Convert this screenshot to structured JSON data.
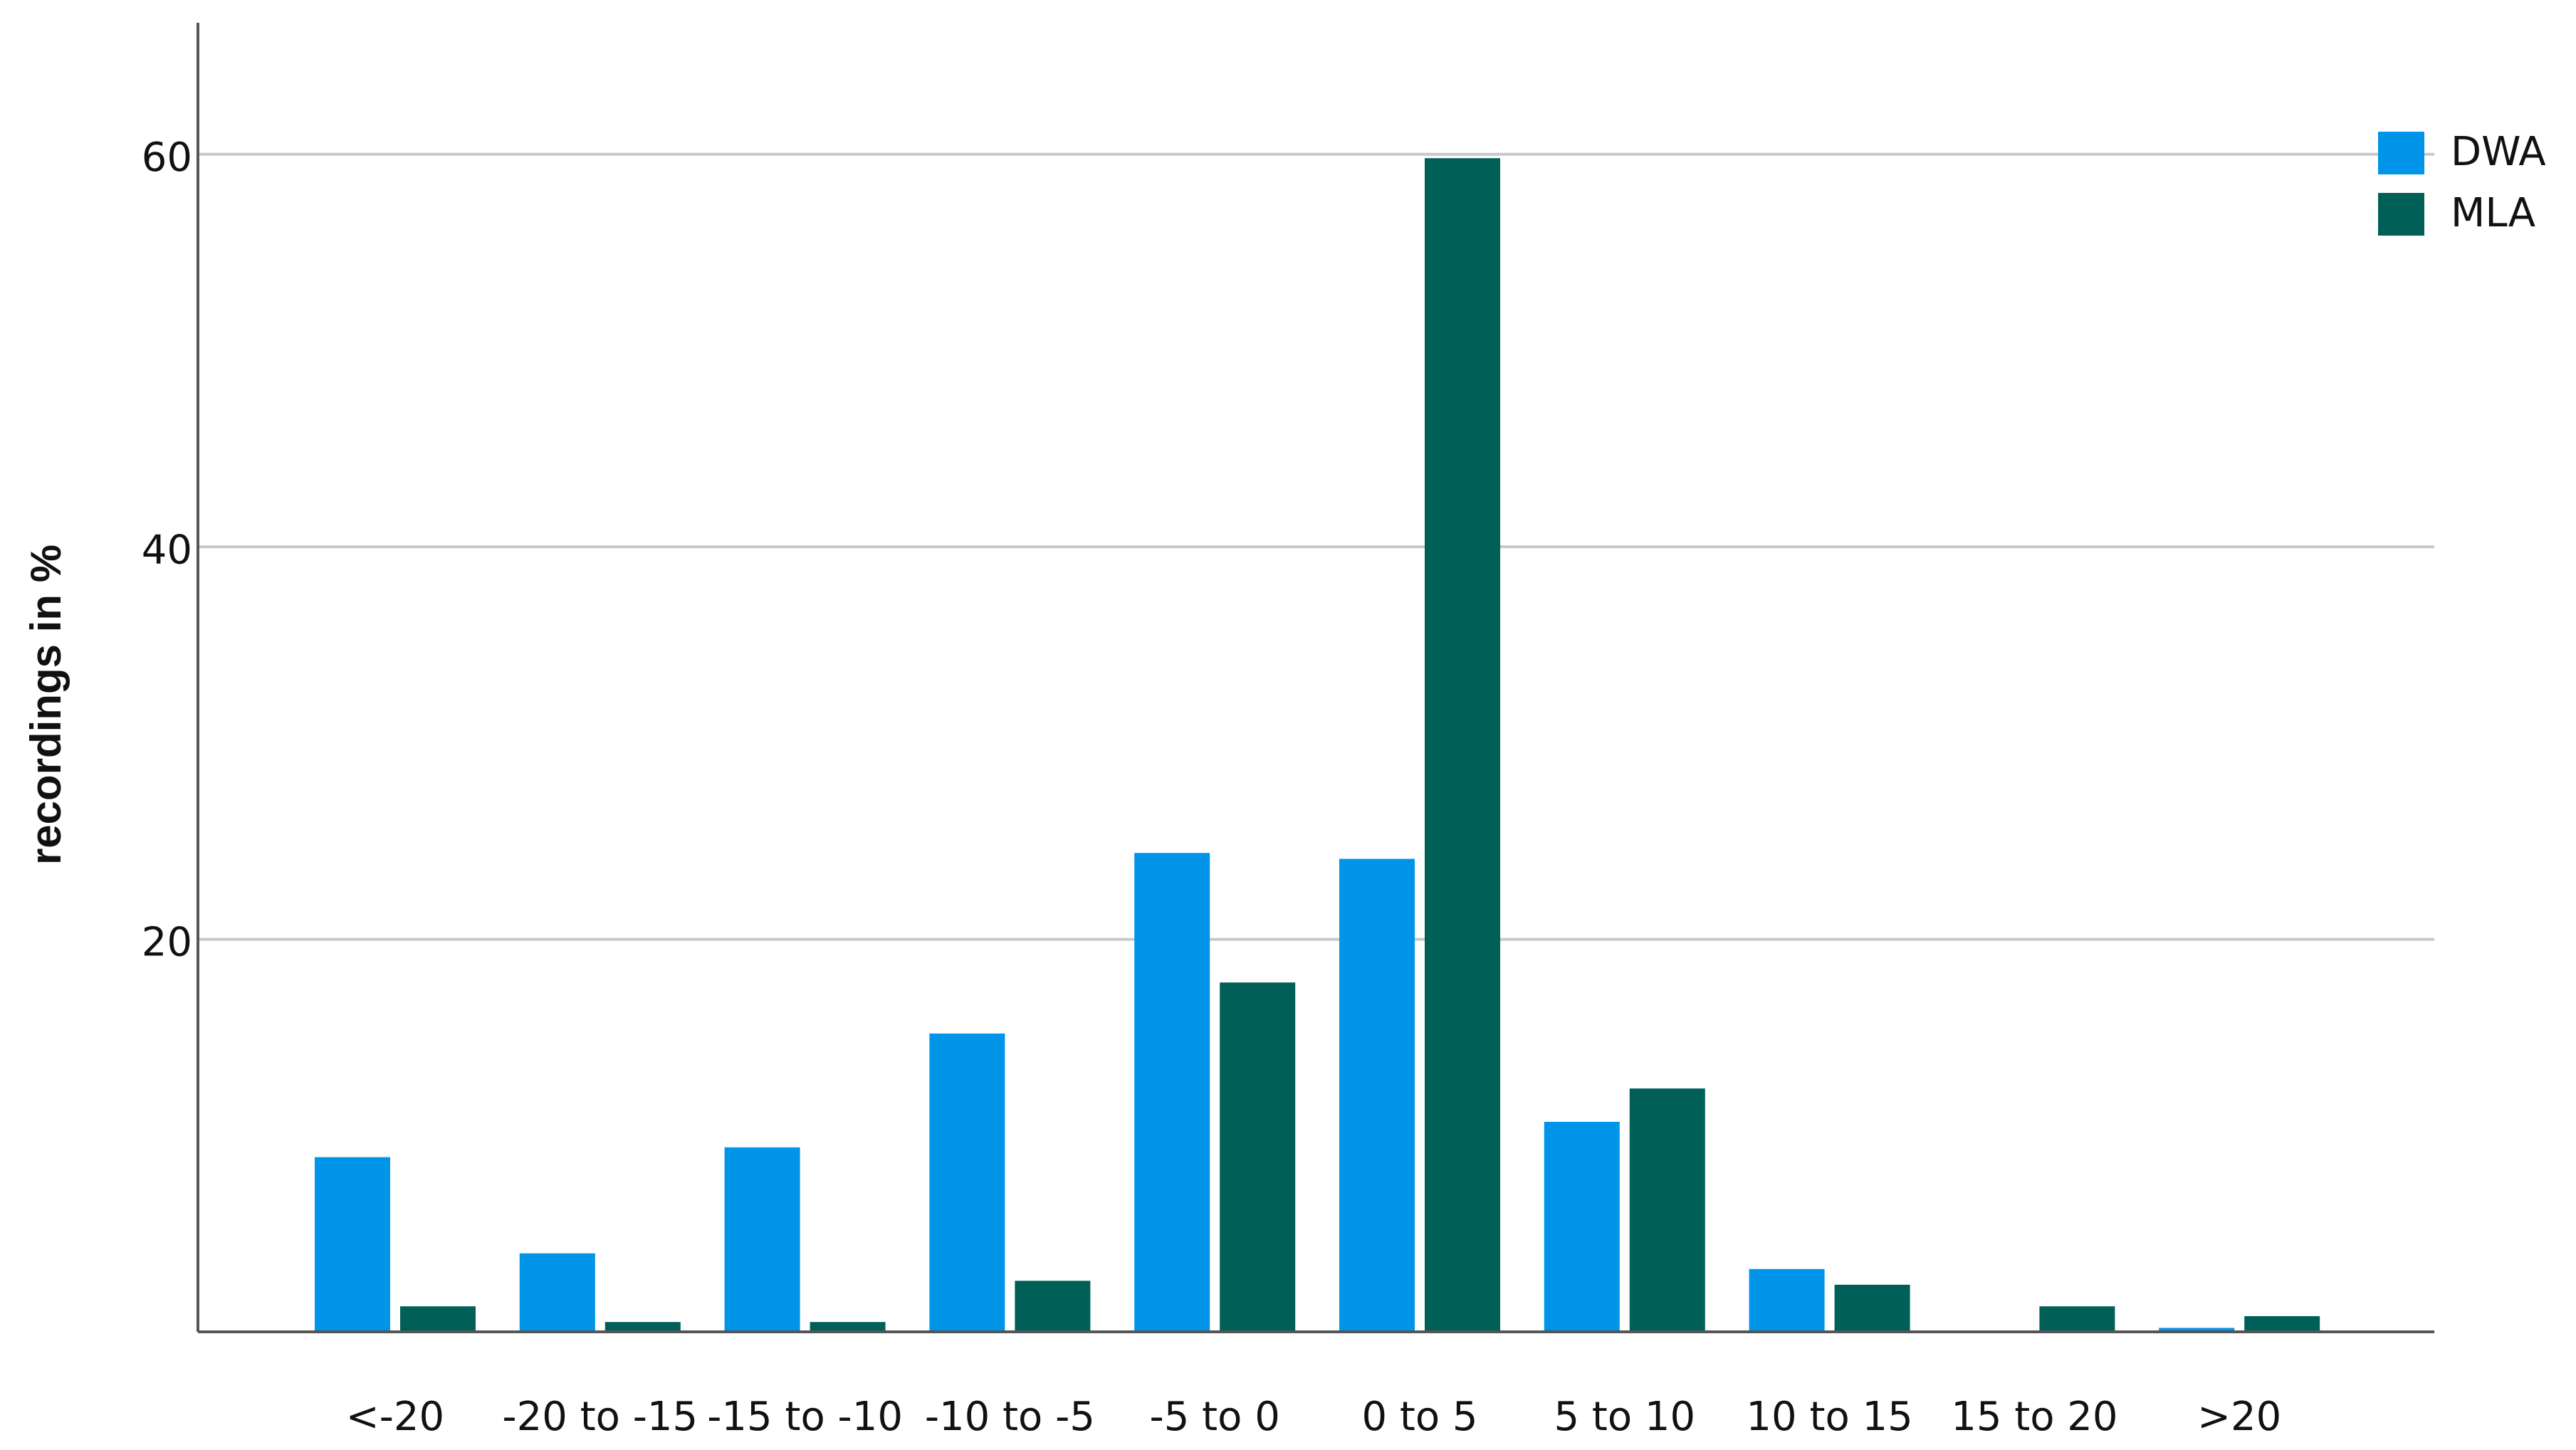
{
  "chart_data": {
    "type": "bar",
    "ylabel": "recordings in %",
    "categories": [
      "<-20",
      "-20 to -15",
      "-15 to -10",
      "-10 to -5",
      "-5 to 0",
      "0 to 5",
      "5 to 10",
      "10 to 15",
      "15 to 20",
      ">20"
    ],
    "series": [
      {
        "name": "DWA",
        "color": "#0095e8",
        "values": [
          8.9,
          4.0,
          9.4,
          15.2,
          24.4,
          24.1,
          10.7,
          3.2,
          0,
          0.2
        ]
      },
      {
        "name": "MLA",
        "color": "#006058",
        "values": [
          1.3,
          0.5,
          0.5,
          2.6,
          17.8,
          59.8,
          12.4,
          2.4,
          1.3,
          0.8
        ]
      }
    ],
    "ylim": [
      0,
      66.7
    ],
    "yticks": [
      20,
      40,
      60
    ],
    "grid": true,
    "legend": "top-right"
  }
}
